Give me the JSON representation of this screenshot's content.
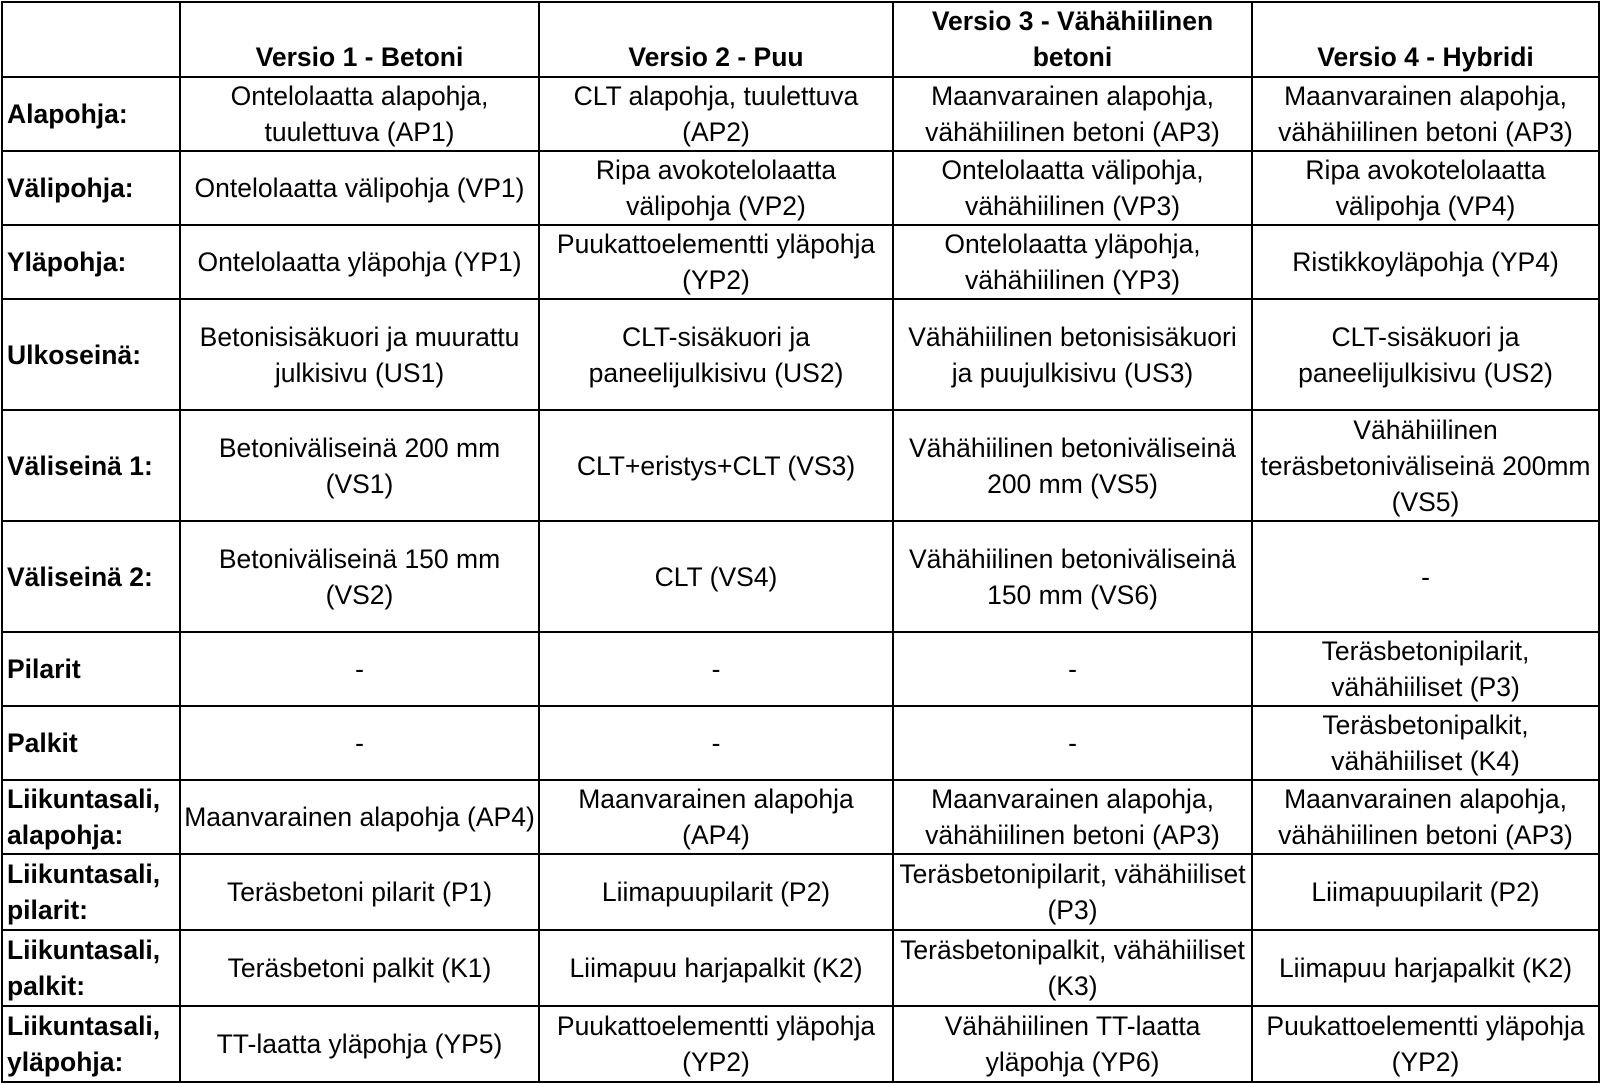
{
  "headers": [
    "",
    "Versio 1 - Betoni",
    "Versio 2 - Puu",
    "Versio 3 - Vähähiilinen betoni",
    "Versio 4 - Hybridi"
  ],
  "rows": [
    {
      "label": "Alapohja:",
      "cells": [
        "Ontelolaatta alapohja, tuulettuva (AP1)",
        "CLT alapohja, tuulettuva (AP2)",
        "Maanvarainen alapohja, vähähiilinen betoni (AP3)",
        "Maanvarainen alapohja, vähähiilinen betoni (AP3)"
      ]
    },
    {
      "label": "Välipohja:",
      "cells": [
        "Ontelolaatta välipohja (VP1)",
        "Ripa avokotelolaatta välipohja (VP2)",
        "Ontelolaatta välipohja, vähähiilinen (VP3)",
        "Ripa avokotelolaatta välipohja (VP4)"
      ]
    },
    {
      "label": "Yläpohja:",
      "cells": [
        "Ontelolaatta yläpohja (YP1)",
        "Puukattoelementti yläpohja (YP2)",
        "Ontelolaatta yläpohja, vähähiilinen (YP3)",
        "Ristikkoyläpohja (YP4)"
      ]
    },
    {
      "label": "Ulkoseinä:",
      "cells": [
        "Betonisisäkuori ja muurattu julkisivu (US1)",
        "CLT-sisäkuori ja paneelijulkisivu (US2)",
        "Vähähiilinen betonisisäkuori ja puujulkisivu (US3)",
        "CLT-sisäkuori ja paneelijulkisivu (US2)"
      ]
    },
    {
      "label": "Väliseinä 1:",
      "cells": [
        "Betoniväliseinä 200 mm (VS1)",
        "CLT+eristys+CLT (VS3)",
        "Vähähiilinen betoniväliseinä 200 mm (VS5)",
        "Vähähiilinen teräsbetoniväliseinä 200mm (VS5)"
      ]
    },
    {
      "label": "Väliseinä 2:",
      "cells": [
        "Betoniväliseinä 150 mm (VS2)",
        "CLT (VS4)",
        "Vähähiilinen betoniväliseinä 150 mm (VS6)",
        "-"
      ]
    },
    {
      "label": "Pilarit",
      "cells": [
        "-",
        "-",
        "-",
        "Teräsbetonipilarit, vähähiiliset (P3)"
      ]
    },
    {
      "label": "Palkit",
      "cells": [
        "-",
        "-",
        "-",
        "Teräsbetonipalkit, vähähiiliset (K4)"
      ]
    },
    {
      "label": "Liikuntasali, alapohja:",
      "cells": [
        "Maanvarainen alapohja (AP4)",
        "Maanvarainen alapohja (AP4)",
        "Maanvarainen alapohja, vähähiilinen betoni (AP3)",
        "Maanvarainen alapohja, vähähiilinen betoni (AP3)"
      ]
    },
    {
      "label": "Liikuntasali, pilarit:",
      "cells": [
        "Teräsbetoni pilarit (P1)",
        "Liimapuupilarit (P2)",
        "Teräsbetonipilarit, vähähiiliset (P3)",
        "Liimapuupilarit (P2)"
      ]
    },
    {
      "label": "Liikuntasali, palkit:",
      "cells": [
        "Teräsbetoni palkit (K1)",
        "Liimapuu harjapalkit (K2)",
        "Teräsbetonipalkit, vähähiiliset (K3)",
        "Liimapuu harjapalkit (K2)"
      ]
    },
    {
      "label": "Liikuntasali, yläpohja:",
      "cells": [
        "TT-laatta yläpohja (YP5)",
        "Puukattoelementti yläpohja (YP2)",
        "Vähähiilinen TT-laatta yläpohja (YP6)",
        "Puukattoelementti yläpohja (YP2)"
      ]
    }
  ]
}
